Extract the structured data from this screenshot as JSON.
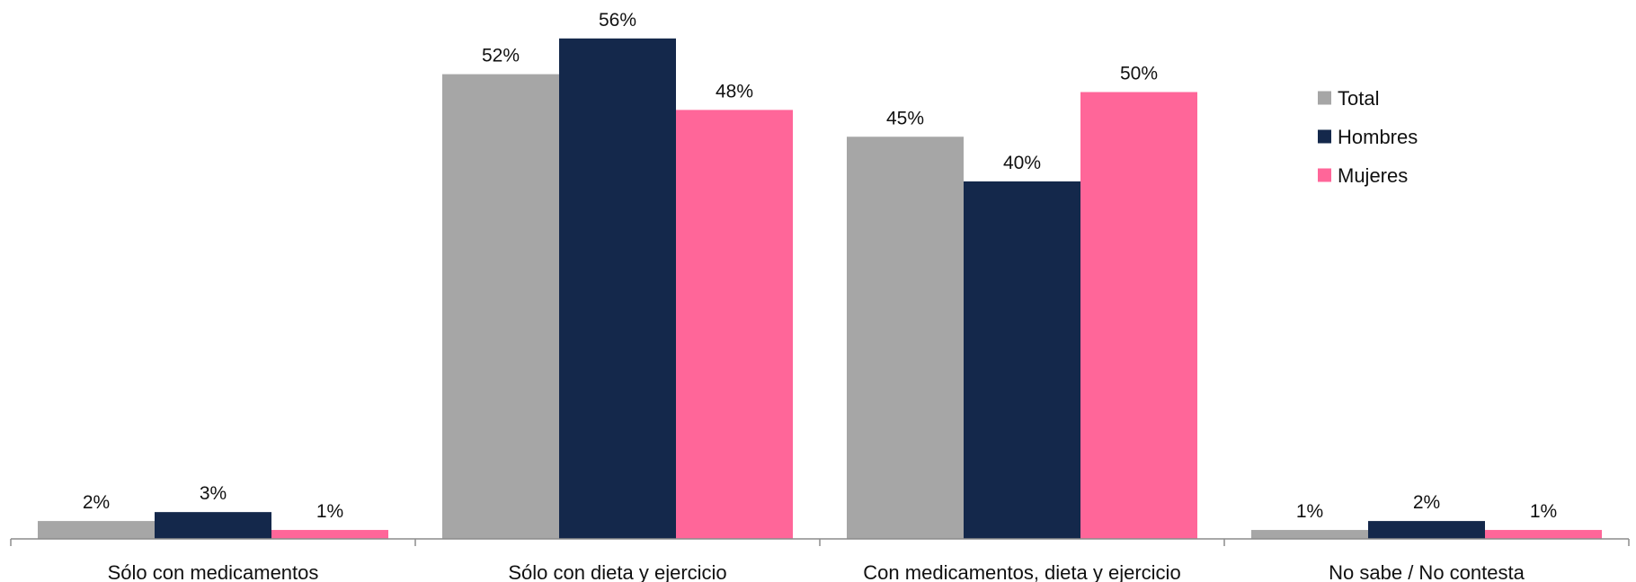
{
  "chart_data": {
    "type": "bar",
    "categories": [
      "Sólo con medicamentos",
      "Sólo con dieta y ejercicio",
      "Con medicamentos, dieta y ejercicio",
      "No sabe / No contesta"
    ],
    "series": [
      {
        "name": "Total",
        "values": [
          2,
          52,
          45,
          1
        ],
        "labels": [
          "2%",
          "52%",
          "45%",
          "1%"
        ],
        "color": "#a6a6a6"
      },
      {
        "name": "Hombres",
        "values": [
          3,
          56,
          40,
          2
        ],
        "labels": [
          "3%",
          "56%",
          "40%",
          "2%"
        ],
        "color": "#14284b"
      },
      {
        "name": "Mujeres",
        "values": [
          1,
          48,
          50,
          1
        ],
        "labels": [
          "1%",
          "48%",
          "50%",
          "1%"
        ],
        "color": "#ff6699"
      }
    ],
    "unit": "%",
    "ylim": [
      0,
      60
    ],
    "grid": false,
    "legend_position": "right"
  }
}
